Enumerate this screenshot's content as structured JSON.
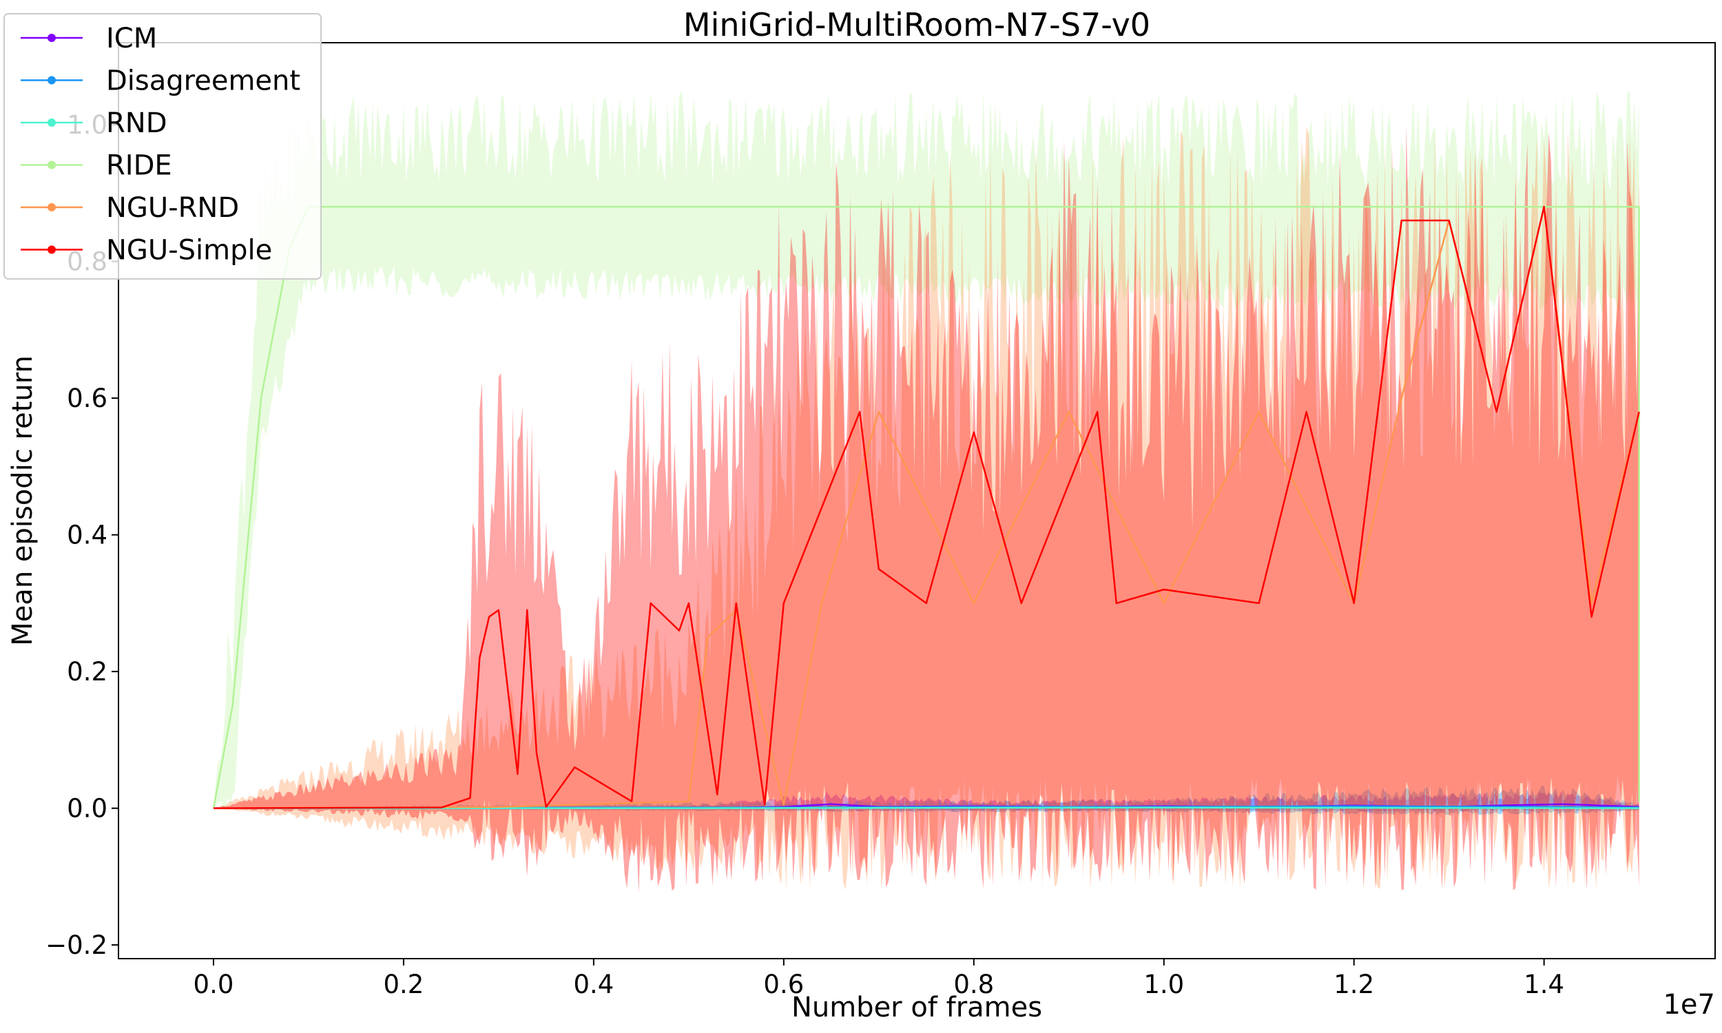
{
  "chart_data": {
    "type": "line",
    "title": "MiniGrid-MultiRoom-N7-S7-v0",
    "xlabel": "Number of frames",
    "ylabel": "Mean episodic return",
    "x_scale_label": "1e7",
    "xlim": [
      -0.1,
      1.58
    ],
    "ylim": [
      -0.22,
      1.12
    ],
    "x_ticks": [
      0.0,
      0.2,
      0.4,
      0.6,
      0.8,
      1.0,
      1.2,
      1.4
    ],
    "x_tick_labels": [
      "0.0",
      "0.2",
      "0.4",
      "0.6",
      "0.8",
      "1.0",
      "1.2",
      "1.4"
    ],
    "y_ticks": [
      -0.2,
      0.0,
      0.2,
      0.4,
      0.6,
      0.8,
      1.0
    ],
    "y_tick_labels": [
      "−0.2",
      "0.0",
      "0.2",
      "0.4",
      "0.6",
      "0.8",
      "1.0"
    ],
    "grid": false,
    "legend_position": "top-left",
    "series": [
      {
        "name": "ICM",
        "color": "#8000ff",
        "points": [
          [
            0.0,
            0.0
          ],
          [
            0.1,
            0.0
          ],
          [
            0.2,
            0.001
          ],
          [
            0.3,
            0.0
          ],
          [
            0.4,
            0.001
          ],
          [
            0.5,
            0.0
          ],
          [
            0.6,
            0.002
          ],
          [
            0.65,
            0.006
          ],
          [
            0.7,
            0.002
          ],
          [
            0.8,
            0.003
          ],
          [
            0.9,
            0.002
          ],
          [
            1.0,
            0.003
          ],
          [
            1.1,
            0.002
          ],
          [
            1.2,
            0.004
          ],
          [
            1.25,
            0.003
          ],
          [
            1.3,
            0.002
          ],
          [
            1.35,
            0.004
          ],
          [
            1.42,
            0.006
          ],
          [
            1.5,
            0.002
          ]
        ],
        "band": [
          [
            0.0,
            0.0,
            0.0
          ],
          [
            0.5,
            -0.002,
            0.004
          ],
          [
            0.65,
            -0.005,
            0.025
          ],
          [
            0.8,
            -0.004,
            0.012
          ],
          [
            1.0,
            -0.004,
            0.015
          ],
          [
            1.2,
            -0.005,
            0.02
          ],
          [
            1.42,
            -0.005,
            0.025
          ],
          [
            1.5,
            -0.002,
            0.006
          ]
        ]
      },
      {
        "name": "Disagreement",
        "color": "#1996f3",
        "points": [
          [
            0.0,
            0.0
          ],
          [
            0.2,
            0.0
          ],
          [
            0.4,
            0.001
          ],
          [
            0.6,
            0.001
          ],
          [
            0.8,
            0.002
          ],
          [
            1.0,
            0.002
          ],
          [
            1.2,
            0.003
          ],
          [
            1.4,
            0.002
          ],
          [
            1.5,
            0.001
          ]
        ],
        "band": [
          [
            0.0,
            0.0,
            0.0
          ],
          [
            0.4,
            -0.004,
            0.008
          ],
          [
            0.8,
            -0.006,
            0.012
          ],
          [
            1.0,
            -0.006,
            0.015
          ],
          [
            1.22,
            -0.01,
            0.03
          ],
          [
            1.42,
            -0.01,
            0.035
          ],
          [
            1.5,
            -0.004,
            0.008
          ]
        ]
      },
      {
        "name": "RND",
        "color": "#4df3ce",
        "points": [
          [
            0.0,
            0.0
          ],
          [
            0.5,
            0.0
          ],
          [
            1.0,
            0.001
          ],
          [
            1.5,
            0.0
          ]
        ],
        "band": [
          [
            0.0,
            0.0,
            0.0
          ],
          [
            0.5,
            -0.002,
            0.004
          ],
          [
            1.0,
            -0.003,
            0.006
          ],
          [
            1.5,
            -0.002,
            0.003
          ]
        ]
      },
      {
        "name": "RIDE",
        "color": "#b2f396",
        "points": [
          [
            0.0,
            0.0
          ],
          [
            0.02,
            0.15
          ],
          [
            0.05,
            0.6
          ],
          [
            0.08,
            0.82
          ],
          [
            0.1,
            0.88
          ],
          [
            1.5,
            0.88
          ],
          [
            1.5,
            0.01
          ]
        ],
        "band": [
          [
            0.0,
            0.0,
            0.0
          ],
          [
            0.02,
            -0.02,
            0.35
          ],
          [
            0.05,
            0.5,
            0.95
          ],
          [
            0.1,
            0.75,
            1.05
          ],
          [
            1.5,
            0.72,
            1.05
          ]
        ]
      },
      {
        "name": "NGU-RND",
        "color": "#ff964f",
        "points": [
          [
            0.0,
            0.0
          ],
          [
            0.3,
            0.002
          ],
          [
            0.5,
            0.01
          ],
          [
            0.52,
            0.25
          ],
          [
            0.55,
            0.29
          ],
          [
            0.6,
            0.005
          ],
          [
            0.64,
            0.3
          ],
          [
            0.7,
            0.58
          ],
          [
            0.8,
            0.3
          ],
          [
            0.9,
            0.58
          ],
          [
            1.0,
            0.3
          ],
          [
            1.1,
            0.58
          ],
          [
            1.2,
            0.3
          ],
          [
            1.25,
            0.6
          ],
          [
            1.3,
            0.86
          ],
          [
            1.35,
            0.58
          ],
          [
            1.4,
            0.88
          ],
          [
            1.45,
            0.3
          ],
          [
            1.5,
            0.58
          ]
        ],
        "band": [
          [
            0.0,
            0.0,
            0.0
          ],
          [
            0.5,
            -0.1,
            0.3
          ],
          [
            0.6,
            -0.12,
            0.7
          ],
          [
            0.8,
            -0.12,
            1.0
          ],
          [
            1.0,
            -0.12,
            1.0
          ],
          [
            1.2,
            -0.12,
            1.0
          ],
          [
            1.5,
            -0.12,
            1.0
          ]
        ]
      },
      {
        "name": "NGU-Simple",
        "color": "#ff0000",
        "points": [
          [
            0.0,
            0.0
          ],
          [
            0.24,
            0.001
          ],
          [
            0.27,
            0.015
          ],
          [
            0.28,
            0.22
          ],
          [
            0.29,
            0.28
          ],
          [
            0.3,
            0.29
          ],
          [
            0.32,
            0.05
          ],
          [
            0.33,
            0.29
          ],
          [
            0.34,
            0.08
          ],
          [
            0.35,
            0.002
          ],
          [
            0.38,
            0.06
          ],
          [
            0.44,
            0.01
          ],
          [
            0.46,
            0.3
          ],
          [
            0.49,
            0.26
          ],
          [
            0.5,
            0.3
          ],
          [
            0.53,
            0.02
          ],
          [
            0.55,
            0.3
          ],
          [
            0.58,
            0.005
          ],
          [
            0.6,
            0.3
          ],
          [
            0.68,
            0.58
          ],
          [
            0.7,
            0.35
          ],
          [
            0.75,
            0.3
          ],
          [
            0.8,
            0.55
          ],
          [
            0.85,
            0.3
          ],
          [
            0.93,
            0.58
          ],
          [
            0.95,
            0.3
          ],
          [
            1.0,
            0.32
          ],
          [
            1.1,
            0.3
          ],
          [
            1.15,
            0.58
          ],
          [
            1.2,
            0.3
          ],
          [
            1.25,
            0.86
          ],
          [
            1.3,
            0.86
          ],
          [
            1.35,
            0.58
          ],
          [
            1.4,
            0.88
          ],
          [
            1.45,
            0.28
          ],
          [
            1.5,
            0.58
          ]
        ],
        "band": [
          [
            0.0,
            0.0,
            0.0
          ],
          [
            0.26,
            -0.02,
            0.1
          ],
          [
            0.28,
            -0.1,
            0.68
          ],
          [
            0.34,
            -0.1,
            0.65
          ],
          [
            0.38,
            -0.02,
            0.14
          ],
          [
            0.44,
            -0.13,
            0.7
          ],
          [
            0.5,
            -0.12,
            0.7
          ],
          [
            0.6,
            -0.12,
            0.9
          ],
          [
            0.7,
            -0.12,
            1.0
          ],
          [
            0.8,
            -0.12,
            0.8
          ],
          [
            0.9,
            -0.12,
            1.0
          ],
          [
            1.0,
            -0.12,
            0.8
          ],
          [
            1.1,
            -0.12,
            0.9
          ],
          [
            1.2,
            -0.12,
            1.0
          ],
          [
            1.3,
            -0.12,
            1.0
          ],
          [
            1.5,
            -0.12,
            1.0
          ]
        ]
      }
    ]
  }
}
